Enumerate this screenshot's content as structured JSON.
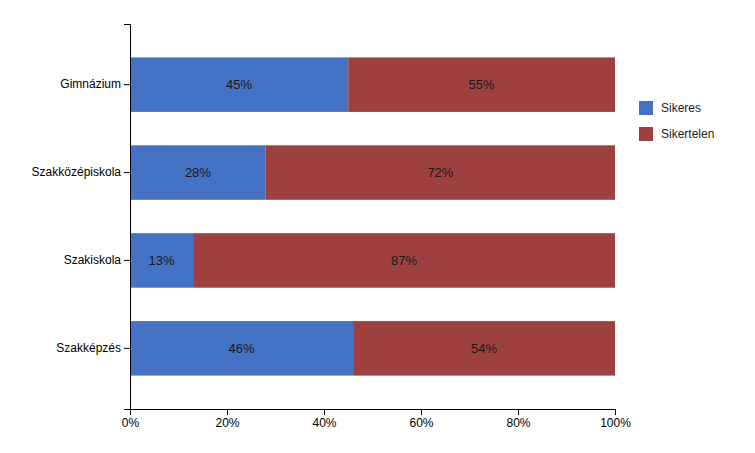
{
  "chart_data": {
    "type": "bar",
    "orientation": "horizontal",
    "stacked": true,
    "categories": [
      "Gimnázium",
      "Szakközépiskola",
      "Szakiskola",
      "Szakképzés"
    ],
    "series": [
      {
        "name": "Sikeres",
        "color": "#4472C4",
        "values": [
          45,
          28,
          13,
          46
        ],
        "value_labels": [
          "45%",
          "28%",
          "13%",
          "46%"
        ]
      },
      {
        "name": "Sikertelen",
        "color": "#9E4040",
        "values": [
          55,
          72,
          87,
          54
        ],
        "value_labels": [
          "55%",
          "72%",
          "87%",
          "54%"
        ]
      }
    ],
    "xlim": [
      0,
      100
    ],
    "xticks": [
      {
        "value": 0,
        "label": "0%"
      },
      {
        "value": 20,
        "label": "20%"
      },
      {
        "value": 40,
        "label": "40%"
      },
      {
        "value": 60,
        "label": "60%"
      },
      {
        "value": 80,
        "label": "80%"
      },
      {
        "value": 100,
        "label": "100%"
      }
    ],
    "data_labels": true,
    "grid": false,
    "legend": "right"
  }
}
